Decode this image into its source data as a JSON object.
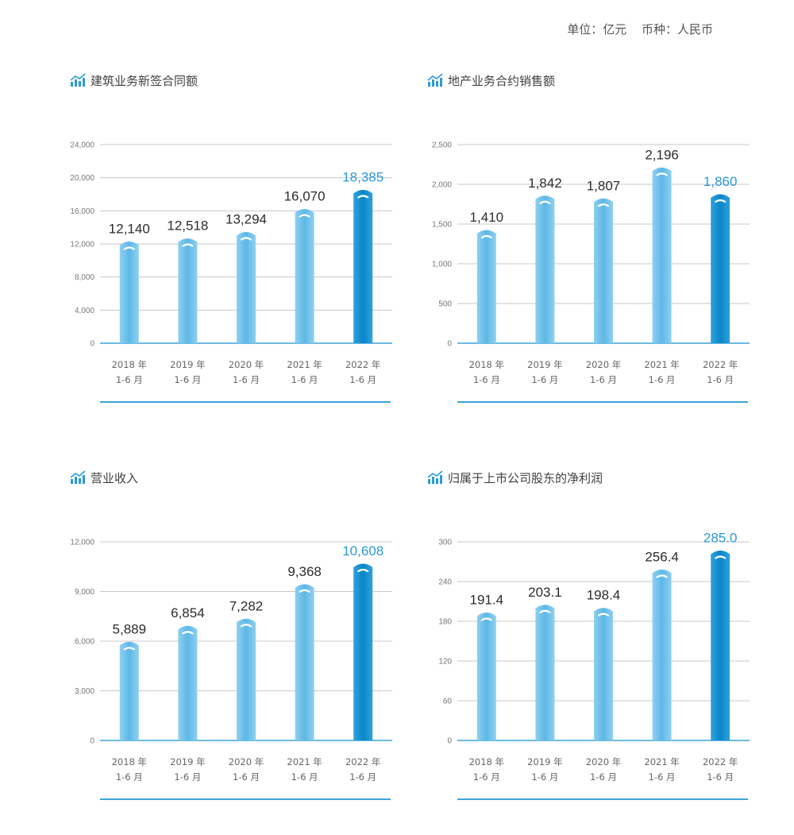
{
  "header": {
    "unit": "单位：亿元",
    "currency": "币种：人民币"
  },
  "colors": {
    "bar": "#5db8e6",
    "bar_light": "#8fd0f0",
    "bar_highlight": "#0a86c9",
    "axis": "#3ba3d8",
    "grid": "#c8c8c8"
  },
  "chart_data": [
    {
      "type": "bar",
      "title": "建筑业务新签合同额",
      "categories": [
        [
          "2018 年",
          "1-6 月"
        ],
        [
          "2019 年",
          "1-6 月"
        ],
        [
          "2020 年",
          "1-6 月"
        ],
        [
          "2021 年",
          "1-6 月"
        ],
        [
          "2022 年",
          "1-6 月"
        ]
      ],
      "values": [
        12140,
        12518,
        13294,
        16070,
        18385
      ],
      "value_labels": [
        "12,140",
        "12,518",
        "13,294",
        "16,070",
        "18,385"
      ],
      "yticks": [
        "0",
        "4,000",
        "8,000",
        "12,000",
        "16,000",
        "20,000",
        "24,000"
      ],
      "ylim": [
        0,
        24000
      ],
      "highlight_index": 4
    },
    {
      "type": "bar",
      "title": "地产业务合约销售额",
      "categories": [
        [
          "2018 年",
          "1-6 月"
        ],
        [
          "2019 年",
          "1-6 月"
        ],
        [
          "2020 年",
          "1-6 月"
        ],
        [
          "2021 年",
          "1-6 月"
        ],
        [
          "2022 年",
          "1-6 月"
        ]
      ],
      "values": [
        1410,
        1842,
        1807,
        2196,
        1860
      ],
      "value_labels": [
        "1,410",
        "1,842",
        "1,807",
        "2,196",
        "1,860"
      ],
      "yticks": [
        "0",
        "500",
        "1,000",
        "1,500",
        "2,000",
        "2,500"
      ],
      "ylim": [
        0,
        2500
      ],
      "highlight_index": 4
    },
    {
      "type": "bar",
      "title": "营业收入",
      "categories": [
        [
          "2018 年",
          "1-6 月"
        ],
        [
          "2019 年",
          "1-6 月"
        ],
        [
          "2020 年",
          "1-6 月"
        ],
        [
          "2021 年",
          "1-6 月"
        ],
        [
          "2022 年",
          "1-6 月"
        ]
      ],
      "values": [
        5889,
        6854,
        7282,
        9368,
        10608
      ],
      "value_labels": [
        "5,889",
        "6,854",
        "7,282",
        "9,368",
        "10,608"
      ],
      "yticks": [
        "0",
        "3,000",
        "6,000",
        "9,000",
        "12,000"
      ],
      "ylim": [
        0,
        12000
      ],
      "highlight_index": 4
    },
    {
      "type": "bar",
      "title": "归属于上市公司股东的净利润",
      "categories": [
        [
          "2018 年",
          "1-6 月"
        ],
        [
          "2019 年",
          "1-6 月"
        ],
        [
          "2020 年",
          "1-6 月"
        ],
        [
          "2021 年",
          "1-6 月"
        ],
        [
          "2022 年",
          "1-6 月"
        ]
      ],
      "values": [
        191.4,
        203.1,
        198.4,
        256.4,
        285.0
      ],
      "value_labels": [
        "191.4",
        "203.1",
        "198.4",
        "256.4",
        "285.0"
      ],
      "yticks": [
        "0",
        "60",
        "120",
        "180",
        "240",
        "300"
      ],
      "ylim": [
        0,
        300
      ],
      "highlight_index": 4
    }
  ]
}
